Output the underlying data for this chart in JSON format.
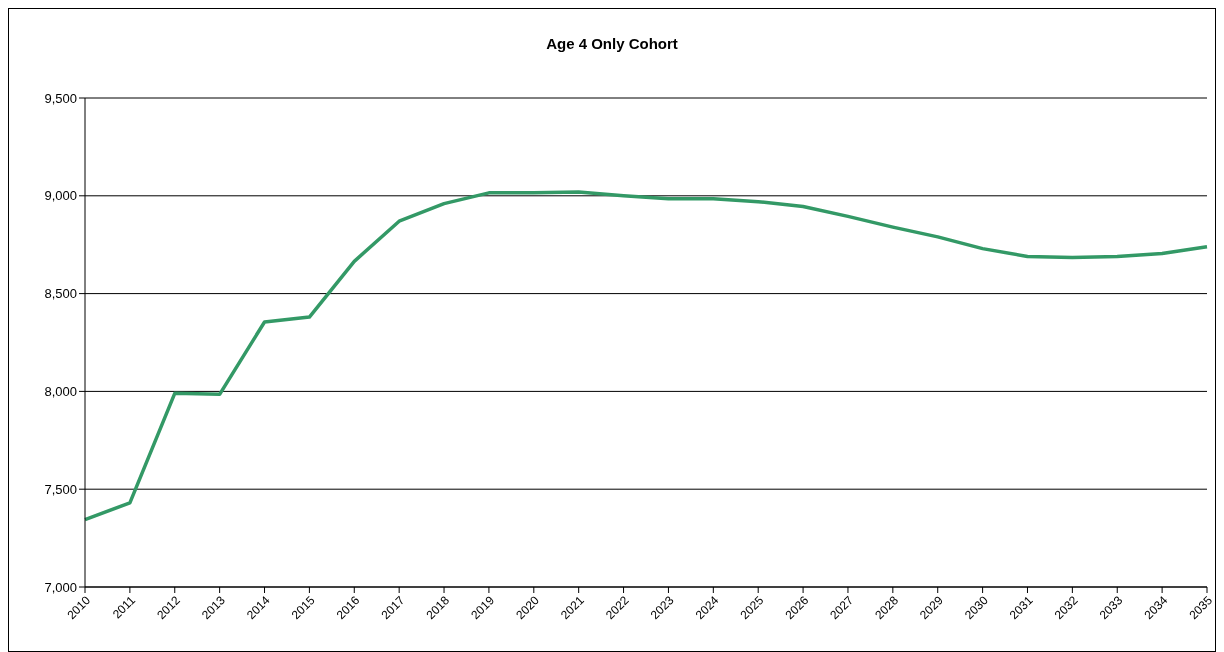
{
  "chart_data": {
    "type": "line",
    "title": "Age 4 Only Cohort",
    "categories": [
      "2010",
      "2011",
      "2012",
      "2013",
      "2014",
      "2015",
      "2016",
      "2017",
      "2018",
      "2019",
      "2020",
      "2021",
      "2022",
      "2023",
      "2024",
      "2025",
      "2026",
      "2027",
      "2028",
      "2029",
      "2030",
      "2031",
      "2032",
      "2033",
      "2034",
      "2035"
    ],
    "series": [
      {
        "color": "#339966",
        "values": [
          7345,
          7430,
          7990,
          7985,
          8355,
          8380,
          8665,
          8870,
          8960,
          9015,
          9015,
          9020,
          9000,
          8985,
          8985,
          8970,
          8945,
          8895,
          8840,
          8790,
          8730,
          8690,
          8685,
          8690,
          8705,
          8740
        ]
      }
    ],
    "ylim": [
      7000,
      9500
    ],
    "yticks": [
      {
        "value": 7000,
        "label": "7,000"
      },
      {
        "value": 7500,
        "label": "7,500"
      },
      {
        "value": 8000,
        "label": "8,000"
      },
      {
        "value": 8500,
        "label": "8,500"
      },
      {
        "value": 9000,
        "label": "9,000"
      },
      {
        "value": 9500,
        "label": "9,500"
      }
    ],
    "grid": "y",
    "marker": "none",
    "line_style": "solid"
  }
}
